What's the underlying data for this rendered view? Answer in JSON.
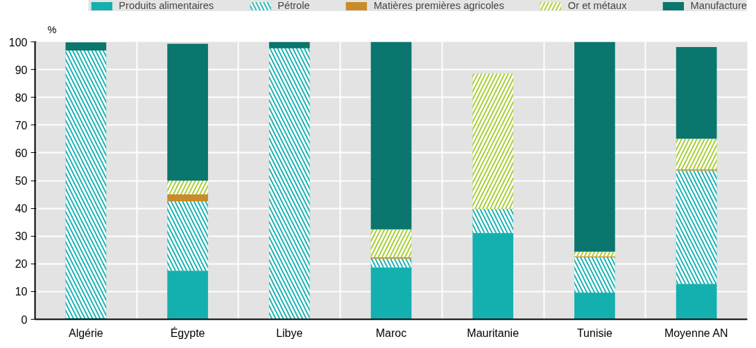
{
  "chart_data": {
    "type": "bar",
    "stacked": true,
    "ylabel": "%",
    "categories": [
      "Algérie",
      "Égypte",
      "Libye",
      "Maroc",
      "Mauritanie",
      "Tunisie",
      "Moyenne AN"
    ],
    "series": [
      {
        "name": "Produits alimentaires",
        "color": "#14b0b0",
        "values": [
          0.4,
          17.5,
          null,
          18.7,
          31.1,
          9.6,
          12.8
        ]
      },
      {
        "name": "Pétrole",
        "color": "#14b0b0",
        "values": [
          96.5,
          25,
          97.7,
          3.2,
          8.7,
          12.7,
          40.8
        ]
      },
      {
        "name": "Matières premières agricoles",
        "color": "#c98c2a",
        "values": [
          null,
          2.5,
          null,
          0.5,
          null,
          0.4,
          0.4
        ]
      },
      {
        "name": "Or et métaux",
        "color": "#a4cc2e",
        "values": [
          null,
          5,
          null,
          10,
          48.8,
          1.7,
          11.1
        ]
      },
      {
        "name": "Manufacture",
        "color": "#0a766e",
        "values": [
          2.9,
          49.3,
          2.3,
          67.6,
          null,
          75.6,
          33
        ]
      }
    ],
    "ylim": [
      0,
      100
    ],
    "yticks": [
      0,
      10,
      20,
      30,
      40,
      50,
      60,
      70,
      80,
      90,
      100
    ],
    "grid": true,
    "legend": "top"
  }
}
